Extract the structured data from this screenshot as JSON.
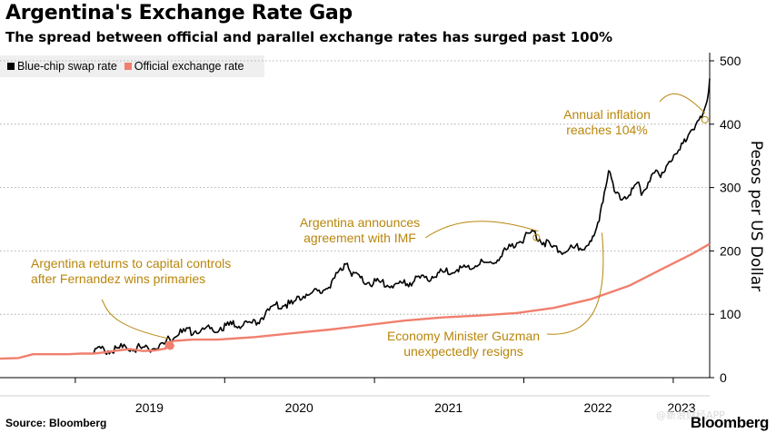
{
  "header": {
    "title": "Argentina's Exchange Rate Gap",
    "subtitle": "The spread between official and parallel exchange rates has surged past 100%"
  },
  "footer": {
    "source": "Source: Bloomberg",
    "brand": "Bloomberg",
    "watermark": "@新浪财经APP"
  },
  "colors": {
    "blue_chip": "#000000",
    "official": "#f07f6e",
    "annotation": "#b8860b",
    "grid": "#9a9a9a",
    "legend_bg": "#efefef"
  },
  "chart_data": {
    "type": "line",
    "title": "Argentina's Exchange Rate Gap",
    "subtitle": "The spread between official and parallel exchange rates has surged past 100%",
    "xlabel": "",
    "ylabel": "Pesos per US Dollar",
    "ylim": [
      0,
      500
    ],
    "xlim": [
      "2018-07-01",
      "2023-03-31"
    ],
    "yticks": [
      0,
      100,
      200,
      300,
      400,
      500
    ],
    "xticks": [
      "2019",
      "2020",
      "2021",
      "2022",
      "2023"
    ],
    "grid": "horizontal",
    "y_axis_side": "right",
    "legend_position": "top-left",
    "series": [
      {
        "name": "Blue-chip swap rate",
        "color": "#000000",
        "points": [
          [
            "2018-07-01",
            30
          ],
          [
            "2018-08-15",
            31
          ],
          [
            "2018-09-20",
            37
          ],
          [
            "2018-11-01",
            37
          ],
          [
            "2018-12-15",
            37
          ],
          [
            "2019-01-15",
            38
          ],
          [
            "2019-02-15",
            38
          ],
          [
            "2019-03-15",
            40
          ],
          [
            "2019-04-15",
            43
          ],
          [
            "2019-05-15",
            45
          ],
          [
            "2019-06-15",
            42
          ],
          [
            "2019-07-15",
            43
          ],
          [
            "2019-08-10",
            46
          ],
          [
            "2019-08-12",
            56
          ],
          [
            "2019-08-31",
            61
          ],
          [
            "2019-09-15",
            67
          ],
          [
            "2019-10-15",
            70
          ],
          [
            "2019-11-15",
            73
          ],
          [
            "2019-12-15",
            75
          ],
          [
            "2020-01-15",
            79
          ],
          [
            "2020-02-15",
            80
          ],
          [
            "2020-03-15",
            82
          ],
          [
            "2020-04-15",
            100
          ],
          [
            "2020-05-15",
            112
          ],
          [
            "2020-06-15",
            112
          ],
          [
            "2020-07-15",
            128
          ],
          [
            "2020-08-15",
            130
          ],
          [
            "2020-09-15",
            145
          ],
          [
            "2020-10-10",
            165
          ],
          [
            "2020-10-23",
            182
          ],
          [
            "2020-11-10",
            157
          ],
          [
            "2020-12-15",
            148
          ],
          [
            "2021-01-15",
            146
          ],
          [
            "2021-02-15",
            142
          ],
          [
            "2021-03-15",
            145
          ],
          [
            "2021-04-15",
            150
          ],
          [
            "2021-05-15",
            155
          ],
          [
            "2021-06-15",
            162
          ],
          [
            "2021-07-15",
            168
          ],
          [
            "2021-08-15",
            170
          ],
          [
            "2021-09-15",
            176
          ],
          [
            "2021-10-15",
            178
          ],
          [
            "2021-11-15",
            195
          ],
          [
            "2021-12-15",
            210
          ],
          [
            "2022-01-10",
            220
          ],
          [
            "2022-01-25",
            224
          ],
          [
            "2022-02-15",
            212
          ],
          [
            "2022-03-15",
            200
          ],
          [
            "2022-04-15",
            196
          ],
          [
            "2022-05-15",
            203
          ],
          [
            "2022-06-15",
            208
          ],
          [
            "2022-07-01",
            238
          ],
          [
            "2022-07-10",
            270
          ],
          [
            "2022-07-20",
            300
          ],
          [
            "2022-07-27",
            328
          ],
          [
            "2022-08-10",
            290
          ],
          [
            "2022-08-25",
            280
          ],
          [
            "2022-09-15",
            285
          ],
          [
            "2022-10-05",
            302
          ],
          [
            "2022-10-15",
            290
          ],
          [
            "2022-11-01",
            305
          ],
          [
            "2022-11-20",
            320
          ],
          [
            "2022-12-01",
            310
          ],
          [
            "2022-12-15",
            335
          ],
          [
            "2023-01-10",
            345
          ],
          [
            "2023-01-25",
            365
          ],
          [
            "2023-02-10",
            385
          ],
          [
            "2023-02-25",
            395
          ],
          [
            "2023-03-05",
            398
          ],
          [
            "2023-03-15",
            410
          ],
          [
            "2023-03-22",
            425
          ],
          [
            "2023-03-27",
            445
          ],
          [
            "2023-03-31",
            472
          ]
        ]
      },
      {
        "name": "Official exchange rate",
        "color": "#f07f6e",
        "points": [
          [
            "2018-07-01",
            30
          ],
          [
            "2018-08-15",
            31
          ],
          [
            "2018-09-20",
            37
          ],
          [
            "2018-11-01",
            37
          ],
          [
            "2018-12-15",
            37
          ],
          [
            "2019-01-15",
            38
          ],
          [
            "2019-02-15",
            38
          ],
          [
            "2019-03-15",
            40
          ],
          [
            "2019-04-15",
            43
          ],
          [
            "2019-05-15",
            45
          ],
          [
            "2019-06-15",
            42
          ],
          [
            "2019-07-15",
            43
          ],
          [
            "2019-08-10",
            46
          ],
          [
            "2019-08-12",
            55
          ],
          [
            "2019-08-31",
            58
          ],
          [
            "2019-10-15",
            60
          ],
          [
            "2019-12-15",
            60
          ],
          [
            "2020-03-15",
            64
          ],
          [
            "2020-06-15",
            70
          ],
          [
            "2020-09-15",
            76
          ],
          [
            "2020-12-15",
            83
          ],
          [
            "2021-03-15",
            90
          ],
          [
            "2021-06-15",
            95
          ],
          [
            "2021-09-15",
            98
          ],
          [
            "2021-12-15",
            102
          ],
          [
            "2022-03-15",
            110
          ],
          [
            "2022-06-15",
            124
          ],
          [
            "2022-09-15",
            145
          ],
          [
            "2022-12-15",
            175
          ],
          [
            "2023-02-15",
            195
          ],
          [
            "2023-03-31",
            211
          ]
        ]
      }
    ],
    "annotations": [
      {
        "id": "capital-controls",
        "lines": [
          "Argentina returns to capital controls",
          "after Fernandez wins primaries"
        ],
        "x": "2019-08-12",
        "y": 56
      },
      {
        "id": "imf",
        "lines": [
          "Argentina announces",
          "agreement with IMF"
        ],
        "x": "2022-01-25",
        "y": 224
      },
      {
        "id": "guzman",
        "lines": [
          "Economy Minister Guzman",
          "unexpectedly resigns"
        ],
        "x": "2022-07-02",
        "y": 240
      },
      {
        "id": "inflation",
        "lines": [
          "Annual inflation",
          "reaches 104%"
        ],
        "x": "2023-03-15",
        "y": 410
      }
    ]
  }
}
